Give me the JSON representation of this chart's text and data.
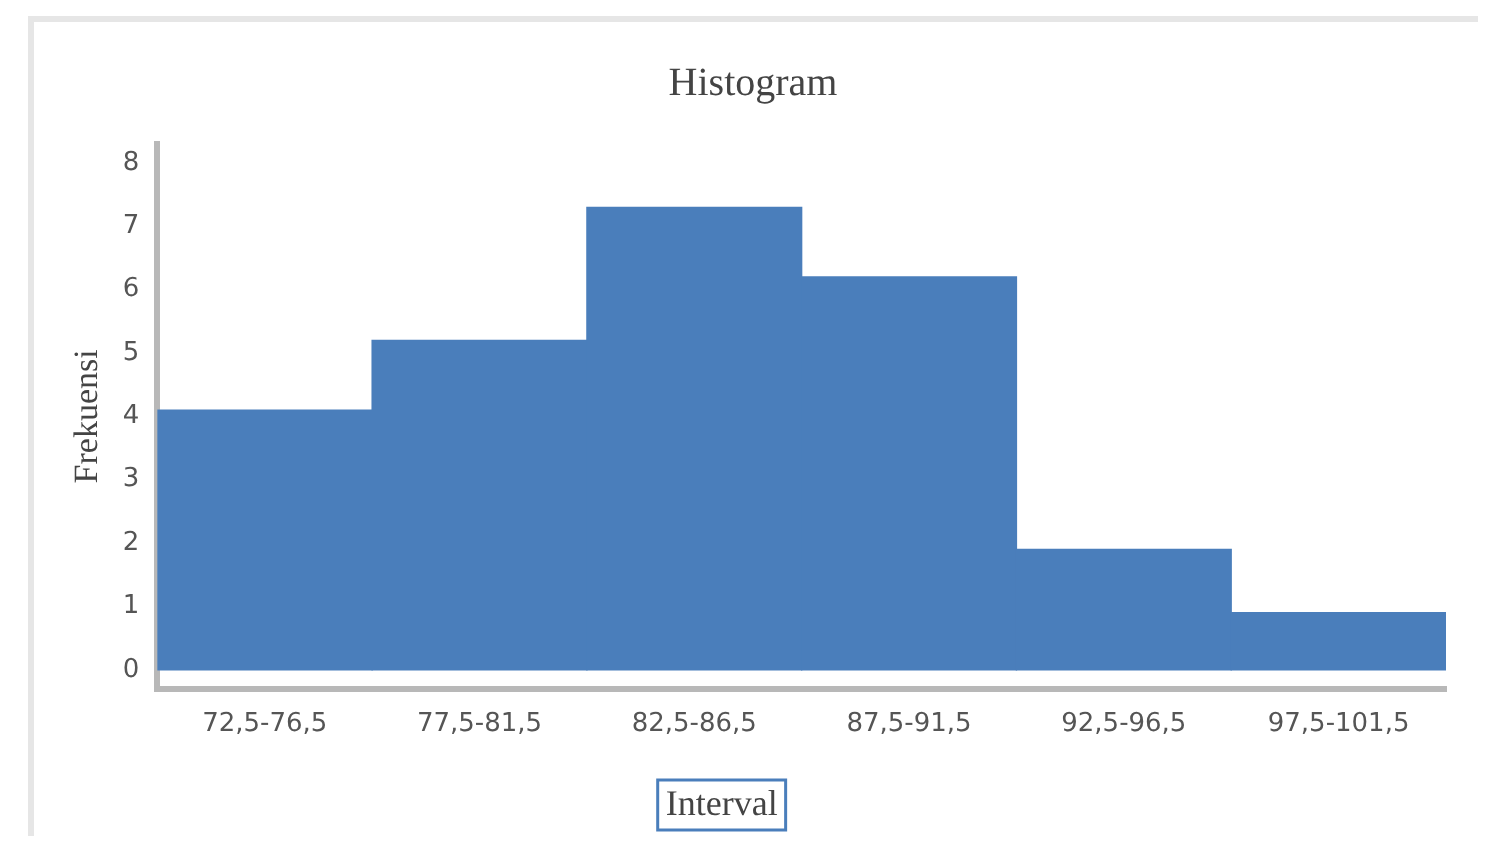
{
  "chart_data": {
    "type": "bar",
    "title": "Histogram",
    "xlabel": "Interval",
    "ylabel": "Frekuensi",
    "categories": [
      "72,5-76,5",
      "77,5-81,5",
      "82,5-86,5",
      "87,5-91,5",
      "92,5-96,5",
      "97,5-101,5"
    ],
    "values": [
      4.1,
      5.2,
      7.3,
      6.2,
      1.9,
      0.9
    ],
    "color": "#4a7ebb",
    "ylim": [
      -0.3,
      8.3
    ],
    "yticks": [
      0,
      1,
      2,
      3,
      4,
      5,
      6,
      7,
      8
    ],
    "grid": false,
    "legend": false
  }
}
